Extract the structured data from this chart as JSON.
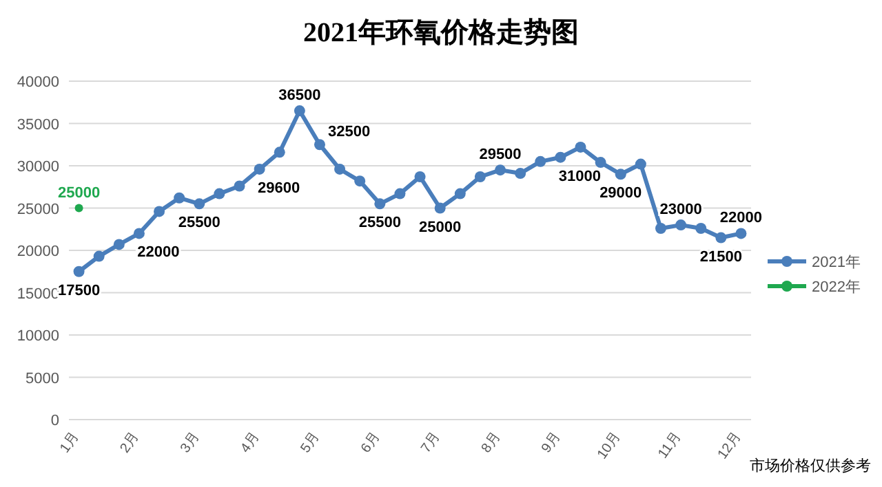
{
  "chart_data": {
    "type": "line",
    "title": "2021年环氧价格走势图",
    "categories": [
      "1月",
      null,
      null,
      "2月",
      null,
      null,
      "3月",
      null,
      null,
      "4月",
      null,
      null,
      "5月",
      null,
      null,
      "6月",
      null,
      null,
      "7月",
      null,
      null,
      "8月",
      null,
      null,
      "9月",
      null,
      null,
      "10月",
      null,
      null,
      "11月",
      null,
      null,
      "12月"
    ],
    "series": [
      {
        "name": "2021年",
        "color": "#4a7ebb",
        "values": [
          17500,
          19300,
          20700,
          22000,
          24600,
          26200,
          25500,
          26700,
          27600,
          29600,
          31600,
          36500,
          32500,
          29600,
          28200,
          25500,
          26700,
          28700,
          25000,
          26700,
          28700,
          29500,
          29100,
          30500,
          31000,
          32200,
          30400,
          29000,
          30200,
          22600,
          23000,
          22600,
          21500,
          22000
        ],
        "value_labels": [
          "17500",
          null,
          null,
          "22000",
          null,
          null,
          "25500",
          null,
          null,
          "29600",
          null,
          "36500",
          "32500",
          null,
          null,
          "25500",
          null,
          null,
          "25000",
          null,
          null,
          "29500",
          null,
          null,
          "31000",
          null,
          null,
          "29000",
          null,
          null,
          "23000",
          null,
          "21500",
          "22000"
        ]
      },
      {
        "name": "2022年",
        "color": "#1fa84f",
        "values": [
          25000,
          null,
          null,
          null,
          null,
          null,
          null,
          null,
          null,
          null,
          null,
          null,
          null,
          null,
          null,
          null,
          null,
          null,
          null,
          null,
          null,
          null,
          null,
          null,
          null,
          null,
          null,
          null,
          null,
          null,
          null,
          null,
          null,
          null
        ],
        "value_labels": [
          "25000",
          null,
          null,
          null,
          null,
          null,
          null,
          null,
          null,
          null,
          null,
          null,
          null,
          null,
          null,
          null,
          null,
          null,
          null,
          null,
          null,
          null,
          null,
          null,
          null,
          null,
          null,
          null,
          null,
          null,
          null,
          null,
          null,
          null
        ]
      }
    ],
    "ylim": [
      0,
      40000
    ],
    "yticks": [
      0,
      5000,
      10000,
      15000,
      20000,
      25000,
      30000,
      35000,
      40000
    ],
    "grid": "y",
    "legend": "right",
    "marker": "circle",
    "line_style": "solid",
    "annotations": [
      "市场价格仅供参考"
    ]
  }
}
